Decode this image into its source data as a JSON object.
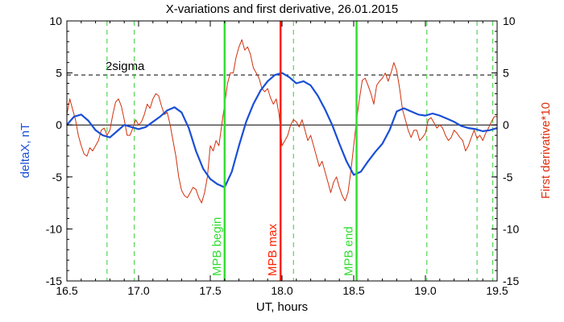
{
  "chart_data": {
    "type": "line",
    "title": "X-variations and first derivative, 26.01.2015",
    "xlabel": "UT, hours",
    "ylabel_left": "deltaX, nT",
    "ylabel_right": "First derivative*10",
    "xlim": [
      16.5,
      19.5
    ],
    "ylim": [
      -15,
      10
    ],
    "x_ticks": [
      "16.5",
      "17.0",
      "17.5",
      "18.0",
      "18.5",
      "19.0",
      "19.5"
    ],
    "x_tick_values": [
      16.5,
      17.0,
      17.5,
      18.0,
      18.5,
      19.0,
      19.5
    ],
    "y_ticks": [
      "10",
      "5",
      "0",
      "-5",
      "-10",
      "-15"
    ],
    "y_tick_values": [
      10,
      5,
      0,
      -5,
      -10,
      -15
    ],
    "zero_line": 0,
    "sigma_line": {
      "value": 4.8,
      "label": "2sigma",
      "label_x": 16.77
    },
    "colors": {
      "deltaX": "#1a4fd6",
      "derivative": "#d0300c",
      "markers_green": "#33dd33",
      "marker_red": "#ff2200",
      "dashed_green": "#33cc33"
    },
    "dashed_verticals": [
      16.78,
      16.97,
      18.08,
      19.01,
      19.36,
      19.47
    ],
    "markers": [
      {
        "x": 17.6,
        "label": "MPB begin",
        "color": "#33dd33"
      },
      {
        "x": 17.99,
        "label": "MPB max",
        "color": "#ff2200"
      },
      {
        "x": 18.52,
        "label": "MPB end",
        "color": "#33dd33"
      }
    ],
    "series": [
      {
        "key": "deltaX",
        "x": [
          16.5,
          16.55,
          16.6,
          16.65,
          16.7,
          16.75,
          16.8,
          16.85,
          16.9,
          16.95,
          17.0,
          17.05,
          17.1,
          17.15,
          17.2,
          17.25,
          17.3,
          17.35,
          17.4,
          17.45,
          17.5,
          17.55,
          17.6,
          17.65,
          17.7,
          17.75,
          17.8,
          17.85,
          17.9,
          17.95,
          18.0,
          18.05,
          18.1,
          18.15,
          18.2,
          18.25,
          18.3,
          18.35,
          18.4,
          18.45,
          18.5,
          18.55,
          18.6,
          18.65,
          18.7,
          18.75,
          18.8,
          18.85,
          18.9,
          18.95,
          19.0,
          19.05,
          19.1,
          19.15,
          19.2,
          19.25,
          19.3,
          19.35,
          19.4,
          19.45,
          19.5
        ],
        "y": [
          0.0,
          0.8,
          1.0,
          0.4,
          -0.5,
          -1.0,
          -1.2,
          -0.6,
          0.0,
          -0.2,
          -0.4,
          -0.2,
          0.3,
          0.8,
          1.4,
          1.7,
          1.2,
          -0.3,
          -2.5,
          -4.2,
          -5.2,
          -5.7,
          -6.0,
          -4.5,
          -2.0,
          0.3,
          2.0,
          3.3,
          4.2,
          4.8,
          5.0,
          4.6,
          4.0,
          4.2,
          3.8,
          2.8,
          1.5,
          0.0,
          -1.8,
          -3.5,
          -4.8,
          -4.5,
          -3.5,
          -2.6,
          -1.8,
          -0.5,
          1.3,
          1.6,
          1.3,
          1.0,
          0.9,
          1.1,
          0.9,
          0.6,
          0.3,
          -0.1,
          -0.3,
          -0.4,
          -0.6,
          -0.5,
          -0.3
        ]
      },
      {
        "key": "derivative",
        "x": [
          16.5,
          16.52,
          16.54,
          16.56,
          16.58,
          16.6,
          16.62,
          16.64,
          16.66,
          16.68,
          16.7,
          16.72,
          16.74,
          16.76,
          16.78,
          16.8,
          16.82,
          16.84,
          16.86,
          16.88,
          16.9,
          16.92,
          16.94,
          16.96,
          16.98,
          17.0,
          17.02,
          17.04,
          17.06,
          17.08,
          17.1,
          17.12,
          17.14,
          17.16,
          17.18,
          17.2,
          17.22,
          17.24,
          17.26,
          17.28,
          17.3,
          17.32,
          17.34,
          17.36,
          17.38,
          17.4,
          17.42,
          17.44,
          17.46,
          17.48,
          17.5,
          17.52,
          17.54,
          17.56,
          17.58,
          17.6,
          17.62,
          17.64,
          17.66,
          17.68,
          17.7,
          17.72,
          17.74,
          17.76,
          17.78,
          17.8,
          17.82,
          17.84,
          17.86,
          17.88,
          17.9,
          17.92,
          17.94,
          17.96,
          17.98,
          18.0,
          18.02,
          18.04,
          18.06,
          18.08,
          18.1,
          18.12,
          18.14,
          18.16,
          18.18,
          18.2,
          18.22,
          18.24,
          18.26,
          18.28,
          18.3,
          18.32,
          18.34,
          18.36,
          18.38,
          18.4,
          18.42,
          18.44,
          18.46,
          18.48,
          18.5,
          18.52,
          18.54,
          18.56,
          18.58,
          18.6,
          18.62,
          18.64,
          18.66,
          18.68,
          18.7,
          18.72,
          18.74,
          18.76,
          18.78,
          18.8,
          18.82,
          18.84,
          18.86,
          18.88,
          18.9,
          18.92,
          18.94,
          18.96,
          18.98,
          19.0,
          19.02,
          19.04,
          19.06,
          19.08,
          19.1,
          19.12,
          19.14,
          19.16,
          19.18,
          19.2,
          19.22,
          19.24,
          19.26,
          19.28,
          19.3,
          19.32,
          19.34,
          19.36,
          19.38,
          19.4,
          19.42,
          19.44,
          19.46,
          19.48,
          19.5
        ],
        "y": [
          1.0,
          2.5,
          1.5,
          0.5,
          -1.0,
          -2.0,
          -2.8,
          -3.0,
          -2.2,
          -2.5,
          -2.0,
          -1.5,
          -0.5,
          -0.3,
          -1.0,
          -0.5,
          1.0,
          2.2,
          2.5,
          1.8,
          0.5,
          -1.0,
          -1.0,
          -0.3,
          0.5,
          0.0,
          0.3,
          1.0,
          2.0,
          1.6,
          2.5,
          3.0,
          2.8,
          1.8,
          1.0,
          1.2,
          0.0,
          -1.5,
          -3.0,
          -5.0,
          -6.3,
          -6.8,
          -7.0,
          -6.5,
          -6.0,
          -6.2,
          -7.0,
          -7.5,
          -6.5,
          -5.0,
          -2.0,
          -2.5,
          -1.5,
          -2.0,
          0.0,
          2.0,
          4.0,
          5.0,
          5.0,
          6.5,
          7.5,
          8.2,
          7.2,
          7.5,
          6.8,
          5.5,
          5.0,
          4.5,
          3.5,
          3.2,
          3.5,
          2.6,
          2.0,
          2.5,
          1.0,
          -2.0,
          -1.5,
          -1.0,
          0.0,
          0.5,
          0.3,
          -0.2,
          0.5,
          -0.5,
          -1.5,
          -1.0,
          -2.0,
          -3.0,
          -4.0,
          -3.5,
          -4.5,
          -5.5,
          -6.5,
          -5.5,
          -5.0,
          -6.0,
          -6.8,
          -7.3,
          -6.5,
          -4.5,
          -2.0,
          0.5,
          2.5,
          4.3,
          4.5,
          3.8,
          3.0,
          2.0,
          3.8,
          4.2,
          4.5,
          5.0,
          4.2,
          5.0,
          6.0,
          5.2,
          3.5,
          1.5,
          0.5,
          -0.5,
          -1.2,
          -0.5,
          -0.5,
          -1.5,
          -1.2,
          -0.8,
          0.5,
          0.7,
          0.2,
          -0.3,
          0.0,
          -0.3,
          -1.0,
          -1.5,
          -1.2,
          -0.5,
          -0.8,
          -1.2,
          -1.5,
          -2.5,
          -2.0,
          -1.2,
          -0.5,
          -1.3,
          -1.0,
          -1.5,
          -0.8,
          -0.3,
          0.3,
          0.8,
          0.8
        ]
      }
    ]
  }
}
